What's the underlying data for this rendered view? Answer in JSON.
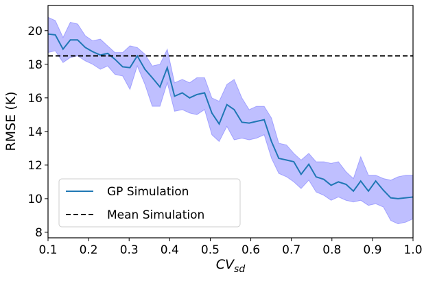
{
  "chart_data": {
    "type": "line",
    "x_label": "CV",
    "x_label_sub": "sd",
    "y_label": "RMSE (K)",
    "x": [
      0.1,
      0.118,
      0.137,
      0.155,
      0.173,
      0.192,
      0.21,
      0.229,
      0.247,
      0.265,
      0.284,
      0.302,
      0.32,
      0.339,
      0.357,
      0.376,
      0.394,
      0.412,
      0.431,
      0.449,
      0.467,
      0.486,
      0.504,
      0.522,
      0.541,
      0.559,
      0.578,
      0.596,
      0.614,
      0.633,
      0.651,
      0.669,
      0.688,
      0.706,
      0.724,
      0.743,
      0.761,
      0.78,
      0.798,
      0.816,
      0.835,
      0.853,
      0.871,
      0.89,
      0.908,
      0.927,
      0.945,
      0.963,
      0.982,
      1.0
    ],
    "series": [
      {
        "name": "GP Simulation",
        "color": "#1f77b4",
        "band_color": "#0000ff",
        "values": [
          19.8,
          19.75,
          18.9,
          19.45,
          19.45,
          19.0,
          18.75,
          18.55,
          18.65,
          18.3,
          17.85,
          17.8,
          18.5,
          17.7,
          17.2,
          16.65,
          17.8,
          16.1,
          16.3,
          16.0,
          16.2,
          16.3,
          15.1,
          14.45,
          15.6,
          15.3,
          14.55,
          14.5,
          14.6,
          14.7,
          13.4,
          12.4,
          12.3,
          12.2,
          11.45,
          12.05,
          11.3,
          11.15,
          10.8,
          11.0,
          10.85,
          10.45,
          11.05,
          10.45,
          11.05,
          10.5,
          10.05,
          10.0,
          10.05,
          10.1
        ],
        "upper": [
          20.8,
          20.6,
          19.6,
          20.5,
          20.4,
          19.7,
          19.4,
          19.5,
          19.1,
          18.7,
          18.7,
          19.1,
          19.0,
          18.6,
          17.9,
          18.0,
          18.9,
          16.9,
          17.1,
          16.9,
          17.2,
          17.2,
          16.0,
          15.8,
          16.8,
          17.1,
          16.0,
          15.3,
          15.5,
          15.5,
          14.8,
          13.3,
          13.2,
          12.7,
          12.3,
          12.7,
          12.2,
          12.2,
          12.1,
          12.2,
          11.6,
          11.2,
          12.5,
          11.4,
          11.4,
          11.2,
          11.1,
          11.3,
          11.4,
          11.4
        ],
        "lower": [
          18.7,
          18.8,
          18.1,
          18.4,
          18.5,
          18.2,
          18.0,
          17.7,
          17.9,
          17.4,
          17.3,
          16.5,
          17.9,
          16.8,
          15.5,
          15.5,
          16.9,
          15.2,
          15.3,
          15.1,
          15.0,
          15.3,
          13.8,
          13.4,
          14.3,
          13.5,
          13.6,
          13.5,
          13.6,
          13.8,
          12.4,
          11.5,
          11.3,
          11.0,
          10.6,
          11.1,
          10.4,
          10.2,
          9.9,
          10.1,
          9.9,
          9.8,
          9.9,
          9.6,
          9.7,
          9.5,
          8.7,
          8.5,
          8.6,
          8.8
        ]
      },
      {
        "name": "Mean Simulation",
        "color": "#000000",
        "value": 18.5,
        "dashed": true
      }
    ],
    "xlim": [
      0.1,
      1.0
    ],
    "ylim": [
      7.67,
      21.5
    ],
    "xticks": [
      0.1,
      0.2,
      0.3,
      0.4,
      0.5,
      0.6,
      0.7,
      0.8,
      0.9,
      {
        "value": 1,
        "label": "1.0"
      }
    ],
    "yticks": [
      8,
      10,
      12,
      14,
      16,
      18,
      20
    ],
    "legend": "lower-left"
  }
}
